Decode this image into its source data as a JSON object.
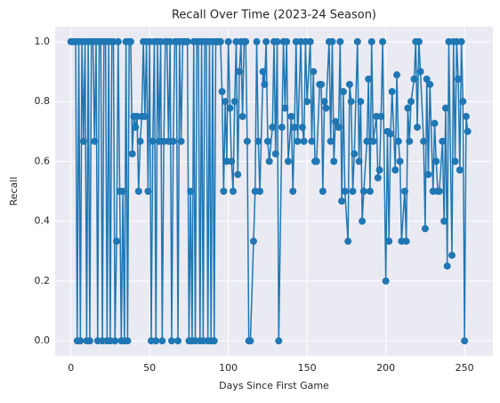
{
  "chart_data": {
    "type": "line",
    "title": "Recall Over Time (2023-24 Season)",
    "xlabel": "Days Since First Game",
    "ylabel": "Recall",
    "color": "#1f77b4",
    "grid": true,
    "xlim": [
      -10,
      268
    ],
    "ylim": [
      -0.05,
      1.05
    ],
    "xticks": [
      0,
      50,
      100,
      150,
      200,
      250
    ],
    "yticks": [
      {
        "value": 0,
        "label": "0.0"
      },
      {
        "value": 0.2,
        "label": "0.2"
      },
      {
        "value": 0.4,
        "label": "0.4"
      },
      {
        "value": 0.6,
        "label": "0.6"
      },
      {
        "value": 0.8,
        "label": "0.8"
      },
      {
        "value": 1,
        "label": "1.0"
      }
    ],
    "x": [
      0,
      1,
      2,
      3,
      4,
      5,
      6,
      7,
      8,
      9,
      10,
      11,
      12,
      13,
      14,
      15,
      16,
      17,
      18,
      19,
      20,
      21,
      22,
      23,
      24,
      25,
      26,
      27,
      28,
      29,
      30,
      31,
      32,
      33,
      34,
      35,
      36,
      37,
      38,
      39,
      40,
      41,
      42,
      43,
      44,
      45,
      46,
      47,
      48,
      49,
      50,
      51,
      52,
      53,
      54,
      55,
      56,
      57,
      58,
      59,
      60,
      61,
      62,
      63,
      64,
      65,
      66,
      67,
      68,
      69,
      70,
      71,
      72,
      73,
      74,
      75,
      76,
      77,
      78,
      79,
      80,
      81,
      82,
      83,
      84,
      85,
      86,
      87,
      88,
      89,
      90,
      91,
      92,
      93,
      94,
      95,
      96,
      97,
      98,
      99,
      100,
      101,
      102,
      103,
      104,
      105,
      106,
      107,
      108,
      109,
      110,
      111,
      112,
      113,
      114,
      116,
      117,
      118,
      119,
      120,
      122,
      123,
      124,
      125,
      126,
      128,
      129,
      130,
      131,
      132,
      134,
      135,
      136,
      137,
      138,
      140,
      141,
      142,
      143,
      144,
      146,
      147,
      148,
      149,
      150,
      152,
      153,
      154,
      155,
      156,
      158,
      159,
      160,
      161,
      162,
      164,
      165,
      166,
      167,
      168,
      170,
      171,
      172,
      173,
      174,
      176,
      177,
      178,
      179,
      180,
      182,
      183,
      184,
      185,
      186,
      188,
      189,
      190,
      191,
      192,
      194,
      195,
      196,
      197,
      198,
      200,
      201,
      202,
      203,
      204,
      206,
      207,
      208,
      209,
      210,
      212,
      213,
      214,
      215,
      216,
      218,
      219,
      220,
      221,
      222,
      224,
      225,
      226,
      227,
      228,
      230,
      231,
      232,
      233,
      234,
      236,
      237,
      238,
      239,
      240,
      242,
      243,
      244,
      245,
      246,
      247,
      248,
      249,
      250,
      251,
      252
    ],
    "values": [
      1,
      1,
      1,
      1,
      0,
      1,
      0,
      1,
      0.667,
      1,
      0,
      1,
      0,
      1,
      1,
      0.667,
      1,
      0,
      1,
      1,
      0,
      1,
      1,
      0,
      1,
      0,
      1,
      1,
      0,
      0.333,
      1,
      0.5,
      0,
      0.5,
      0,
      1,
      0,
      1,
      1,
      0.625,
      0.75,
      0.714,
      0.75,
      0.5,
      0.667,
      0.75,
      1,
      0.75,
      1,
      0.5,
      1,
      0,
      0.667,
      1,
      0,
      1,
      0.667,
      1,
      0,
      0.667,
      1,
      1,
      0.667,
      1,
      0,
      0.667,
      1,
      1,
      0,
      1,
      0.667,
      1,
      1,
      1,
      1,
      0,
      0.5,
      0,
      1,
      0,
      1,
      1,
      0,
      1,
      0,
      1,
      1,
      0,
      1,
      0,
      1,
      0,
      1,
      1,
      1,
      1,
      0.833,
      0.5,
      0.8,
      0.6,
      1,
      0.778,
      0.6,
      0.5,
      0.8,
      1,
      0.556,
      0.9,
      1,
      0.75,
      1,
      1,
      0.667,
      0,
      0,
      0.333,
      0.5,
      1,
      0.667,
      0.5,
      0.9,
      0.857,
      1,
      0.667,
      0.6,
      0.714,
      1,
      0.625,
      1,
      0,
      0.714,
      1,
      0.778,
      1,
      0.6,
      0.75,
      0.5,
      0.714,
      1,
      0.667,
      1,
      0.714,
      0.667,
      1,
      0.8,
      1,
      0.667,
      0.9,
      0.6,
      0.6,
      0.857,
      0.857,
      0.5,
      0.8,
      0.778,
      1,
      0.667,
      1,
      0.6,
      0.733,
      0.714,
      1,
      0.467,
      0.833,
      0.5,
      0.333,
      0.857,
      0.8,
      0.5,
      0.625,
      1,
      0.6,
      0.8,
      0.4,
      0.5,
      0.667,
      0.875,
      0.5,
      1,
      0.667,
      0.75,
      0.545,
      0.571,
      0.75,
      1,
      0.2,
      0.7,
      0.333,
      0.692,
      0.833,
      0.571,
      0.889,
      0.667,
      0.6,
      0.333,
      0.5,
      0.333,
      0.778,
      0.667,
      0.8,
      0.875,
      1,
      0.714,
      1,
      0.9,
      0.667,
      0.375,
      0.875,
      0.556,
      0.857,
      0.5,
      0.727,
      0.6,
      0.5,
      0.5,
      0.667,
      0.4,
      0.778,
      0.25,
      1,
      0.286,
      1,
      0.6,
      1,
      0.875,
      0.571,
      1,
      0.8,
      0,
      0.75,
      0.7
    ]
  }
}
